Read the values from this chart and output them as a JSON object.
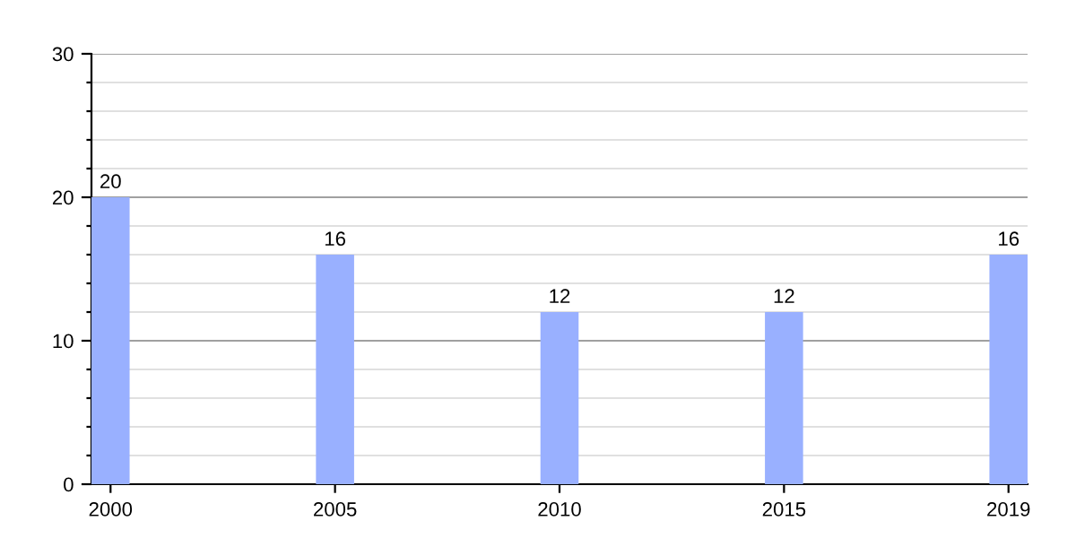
{
  "chart_data": {
    "type": "bar",
    "categories": [
      "2000",
      "2005",
      "2010",
      "2015",
      "2019"
    ],
    "values": [
      20,
      16,
      12,
      12,
      16
    ],
    "color": "#99b0ff",
    "ylim": [
      0,
      30
    ],
    "yticks": [
      0,
      {
        "value": 2,
        "label": null
      },
      {
        "value": 4,
        "label": null
      },
      {
        "value": 6,
        "label": null
      },
      {
        "value": 8,
        "label": null
      },
      10,
      {
        "value": 12,
        "label": null
      },
      {
        "value": 14,
        "label": null
      },
      {
        "value": 16,
        "label": null
      },
      {
        "value": 18,
        "label": null
      },
      20,
      {
        "value": 22,
        "label": null
      },
      {
        "value": 24,
        "label": null
      },
      {
        "value": 26,
        "label": null
      },
      {
        "value": 28,
        "label": null
      },
      30
    ],
    "grid": "y",
    "data_labels": true
  }
}
